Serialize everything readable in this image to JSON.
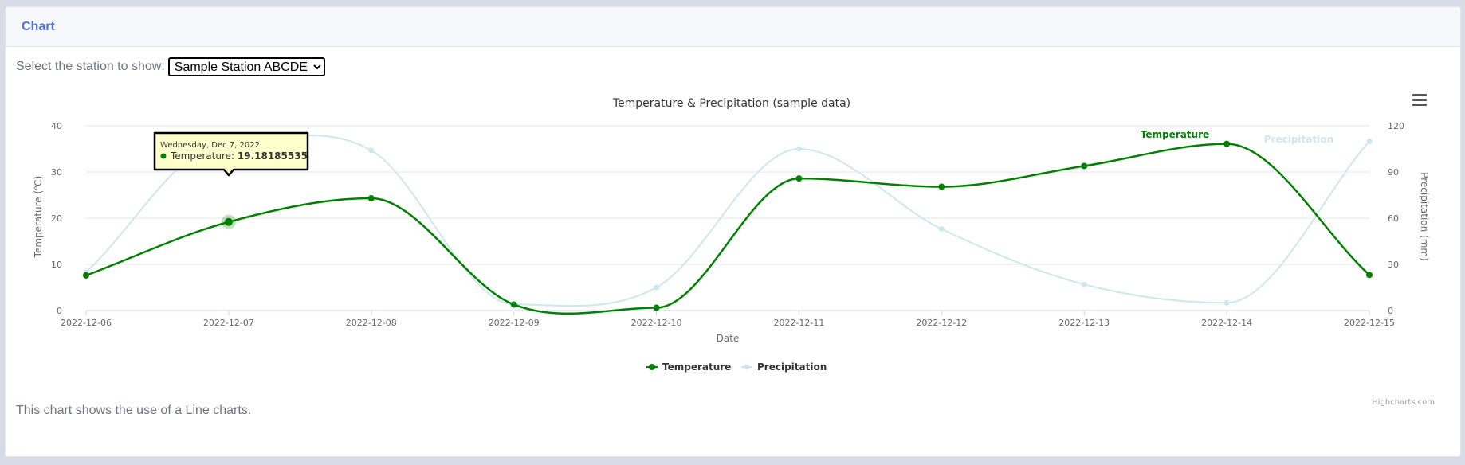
{
  "header": {
    "title": "Chart"
  },
  "station": {
    "label": "Select the station to show:",
    "selected": "Sample Station ABCDE"
  },
  "caption": "This chart shows the use of a Line charts.",
  "credits": "Highcharts.com",
  "menu_icon": "hamburger-menu-icon",
  "tooltip": {
    "date": "Wednesday, Dec 7, 2022",
    "series": "Temperature",
    "value": "19.18185535"
  },
  "colors": {
    "temperature": "#008000",
    "precipitation": "#cde7ef",
    "accent": "#4e6fd8"
  },
  "chart_data": {
    "type": "line",
    "title": "Temperature & Precipitation (sample data)",
    "xlabel": "Date",
    "ylabel": "Temperature (℃)",
    "y2label": "Precipitation (mm)",
    "x": [
      "2022-12-06",
      "2022-12-07",
      "2022-12-08",
      "2022-12-09",
      "2022-12-10",
      "2022-12-11",
      "2022-12-12",
      "2022-12-13",
      "2022-12-14",
      "2022-12-15"
    ],
    "ylim": [
      0,
      40
    ],
    "yticks": [
      0,
      10,
      20,
      30,
      40
    ],
    "y2lim": [
      0,
      120
    ],
    "y2ticks": [
      0,
      30,
      60,
      90,
      120
    ],
    "grid": true,
    "legend": "bottom-center",
    "series": [
      {
        "name": "Temperature",
        "axis": "left",
        "values": [
          7.6,
          19.18185535,
          24.3,
          1.3,
          0.6,
          28.6,
          26.8,
          31.3,
          36.1,
          7.7
        ]
      },
      {
        "name": "Precipitation",
        "axis": "right",
        "values": [
          25,
          110,
          104,
          4,
          15,
          105,
          53,
          17,
          5,
          110
        ]
      }
    ]
  }
}
